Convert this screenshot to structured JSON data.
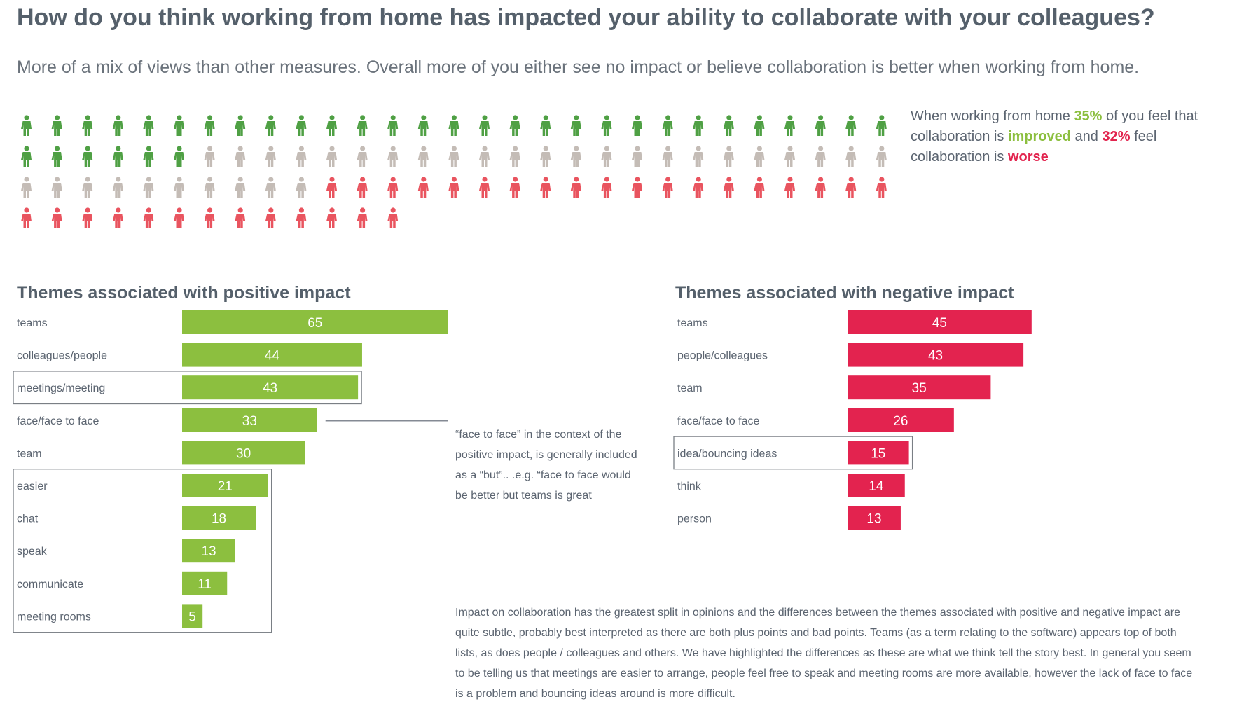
{
  "title": "How do you think working from home has impacted your ability to collaborate with your colleagues?",
  "subtitle": "More of a mix of views than other measures. Overall more of you either see no impact or believe collaboration is better when working from home.",
  "summary": {
    "p1": "When working from home ",
    "improved_pct": "35%",
    "p2": " of you feel that collaboration is ",
    "improved_word": "improved",
    "p3": " and ",
    "worse_pct": "32%",
    "p4": " feel collaboration is ",
    "worse_word": "worse"
  },
  "people_chart": {
    "improved": 35,
    "no_impact": 33,
    "worse": 32,
    "colors": {
      "improved": "#4fa044",
      "no_impact": "#c4bcb6",
      "worse": "#e9545f"
    }
  },
  "positive": {
    "title": "Themes associated with positive impact"
  },
  "negative": {
    "title": "Themes associated with negative impact"
  },
  "note": "“face to face” in the context of the positive impact, is generally included as a “but”.. .e.g. “face to face would be better but teams is great",
  "footer": "Impact on collaboration has the greatest split in opinions and the differences between the themes associated with positive and negative impact are quite subtle, probably best interpreted as there are both plus points and bad points. Teams (as a term relating to the software) appears top of both lists, as does people / colleagues and others. We have highlighted the differences as these are what we think tell the story best. In general you seem to be telling us that meetings are easier to arrange, people feel free to speak and meeting rooms are more available, however the lack of face to face is a problem and bouncing ideas around is more difficult.",
  "chart_data": [
    {
      "type": "bar",
      "orientation": "horizontal",
      "title": "Themes associated with positive impact",
      "categories": [
        "teams",
        "colleagues/people",
        "meetings/meeting",
        "face/face to face",
        "team",
        "easier",
        "chat",
        "speak",
        "communicate",
        "meeting rooms"
      ],
      "values": [
        65,
        44,
        43,
        33,
        30,
        21,
        18,
        13,
        11,
        5
      ],
      "color": "#8cbf3f",
      "highlighted": [
        "meetings/meeting",
        "easier",
        "chat",
        "speak",
        "communicate",
        "meeting rooms"
      ]
    },
    {
      "type": "bar",
      "orientation": "horizontal",
      "title": "Themes associated with negative impact",
      "categories": [
        "teams",
        "people/colleagues",
        "team",
        "face/face to face",
        "idea/bouncing ideas",
        "think",
        "person"
      ],
      "values": [
        45,
        43,
        35,
        26,
        15,
        14,
        13
      ],
      "color": "#e3234f",
      "highlighted": [
        "idea/bouncing ideas"
      ]
    }
  ]
}
